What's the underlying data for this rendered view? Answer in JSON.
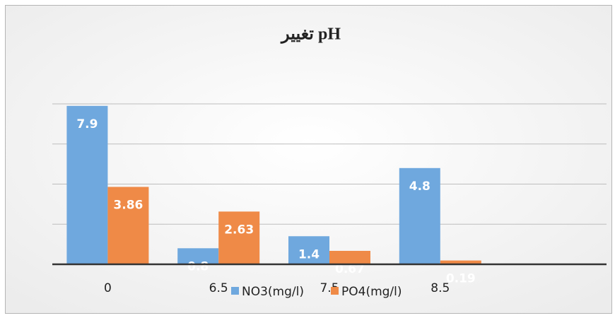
{
  "chart_data": {
    "type": "bar",
    "title": "تغيير pH",
    "categories": [
      "0",
      "6.5",
      "7.5",
      "8.5"
    ],
    "series": [
      {
        "name": "NO3(mg/l)",
        "color": "#6fa8de",
        "values": [
          7.9,
          0.8,
          1.4,
          4.8
        ]
      },
      {
        "name": "PO4(mg/l)",
        "color": "#ef8a47",
        "values": [
          3.86,
          2.63,
          0.67,
          0.19
        ]
      }
    ],
    "ylim": [
      0,
      8
    ],
    "yticks": [
      0,
      2,
      4,
      6,
      8
    ],
    "grid": true,
    "legend": "bottom"
  }
}
